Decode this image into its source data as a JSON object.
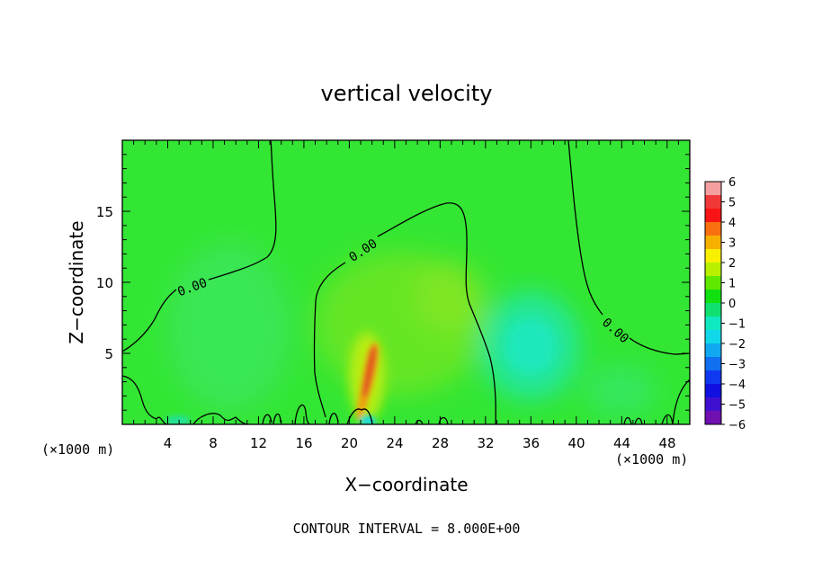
{
  "chart_data": {
    "type": "heatmap",
    "title": "vertical velocity",
    "xlabel": "X−coordinate",
    "ylabel": "Z−coordinate",
    "x_unit_label": "(×1000 m)",
    "y_unit_label": "(×1000 m)",
    "xlim": [
      0,
      50
    ],
    "ylim": [
      0,
      20
    ],
    "x_ticks": [
      "4",
      "8",
      "12",
      "16",
      "20",
      "24",
      "28",
      "32",
      "36",
      "40",
      "44",
      "48"
    ],
    "y_ticks": [
      "5",
      "10",
      "15"
    ],
    "contour_labels": [
      "0.00",
      "0.00",
      "0.00"
    ],
    "footer": "CONTOUR INTERVAL = 8.000E+00",
    "colorbar": {
      "labels": [
        "6",
        "5",
        "4",
        "3",
        "2",
        "1",
        "0",
        "−1",
        "−2",
        "−3",
        "−4",
        "−5",
        "−6"
      ],
      "colors": [
        "#f4a0a0",
        "#f03838",
        "#f81414",
        "#f87010",
        "#f8b000",
        "#f8f000",
        "#b8f000",
        "#60e800",
        "#10e010",
        "#10e070",
        "#10e8c0",
        "#10d8e8",
        "#10a8f0",
        "#1070f0",
        "#1038f0",
        "#1010e0",
        "#4010d0",
        "#7010b0"
      ]
    },
    "background_color": "#33e633",
    "features": [
      {
        "kind": "updraft",
        "x": 22,
        "z": 3.5,
        "peak": 4
      },
      {
        "kind": "downdraft",
        "x": 36,
        "z": 6,
        "peak": -2
      },
      {
        "kind": "downdraft",
        "x": 12,
        "z": 6,
        "peak": -0.7
      },
      {
        "kind": "downdraft",
        "x": 5,
        "z": 0.5,
        "peak": -1.5
      },
      {
        "kind": "downdraft",
        "x": 22,
        "z": 0.3,
        "peak": -2
      }
    ]
  }
}
